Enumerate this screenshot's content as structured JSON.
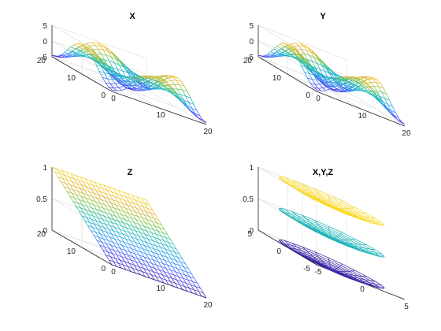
{
  "chart_data": [
    {
      "type": "mesh",
      "title": "X",
      "surface": "X = 5*sin(pi*(u-1)/19*2) * cos(pi*(v-1)/19*2) style wavy mesh",
      "x_ticks": [
        "0",
        "10",
        "20"
      ],
      "y_ticks": [
        "0",
        "10",
        "20"
      ],
      "z_ticks": [
        "-5",
        "0",
        "5"
      ],
      "xlim": [
        0,
        20
      ],
      "ylim": [
        0,
        20
      ],
      "zlim": [
        -5,
        5
      ],
      "grid": true
    },
    {
      "type": "mesh",
      "title": "Y",
      "surface": "wavy mesh",
      "x_ticks": [
        "0",
        "10",
        "20"
      ],
      "y_ticks": [
        "0",
        "10",
        "20"
      ],
      "z_ticks": [
        "-5",
        "0",
        "5"
      ],
      "xlim": [
        0,
        20
      ],
      "ylim": [
        0,
        20
      ],
      "zlim": [
        -5,
        5
      ],
      "grid": true
    },
    {
      "type": "mesh",
      "title": "Z",
      "surface": "planar ramp",
      "x_ticks": [
        "0",
        "10",
        "20"
      ],
      "y_ticks": [
        "0",
        "10",
        "20"
      ],
      "z_ticks": [
        "0",
        "0.5",
        "1"
      ],
      "xlim": [
        0,
        20
      ],
      "ylim": [
        0,
        20
      ],
      "zlim": [
        0,
        1
      ],
      "grid": true
    },
    {
      "type": "mesh",
      "title": "X,Y,Z",
      "surface": "three stacked bowl-shaped rings",
      "x_ticks": [
        "-5",
        "0",
        "5"
      ],
      "y_ticks": [
        "-5",
        "0",
        "5"
      ],
      "z_ticks": [
        "0",
        "0.5",
        "1"
      ],
      "xlim": [
        -5,
        5
      ],
      "ylim": [
        -5,
        5
      ],
      "zlim": [
        0,
        1
      ],
      "grid": true
    }
  ],
  "colormap": [
    "#3e26a8",
    "#4743f8",
    "#2f84fa",
    "#14a9d4",
    "#23bfa0",
    "#8dc43e",
    "#e6b131",
    "#f9d925"
  ]
}
